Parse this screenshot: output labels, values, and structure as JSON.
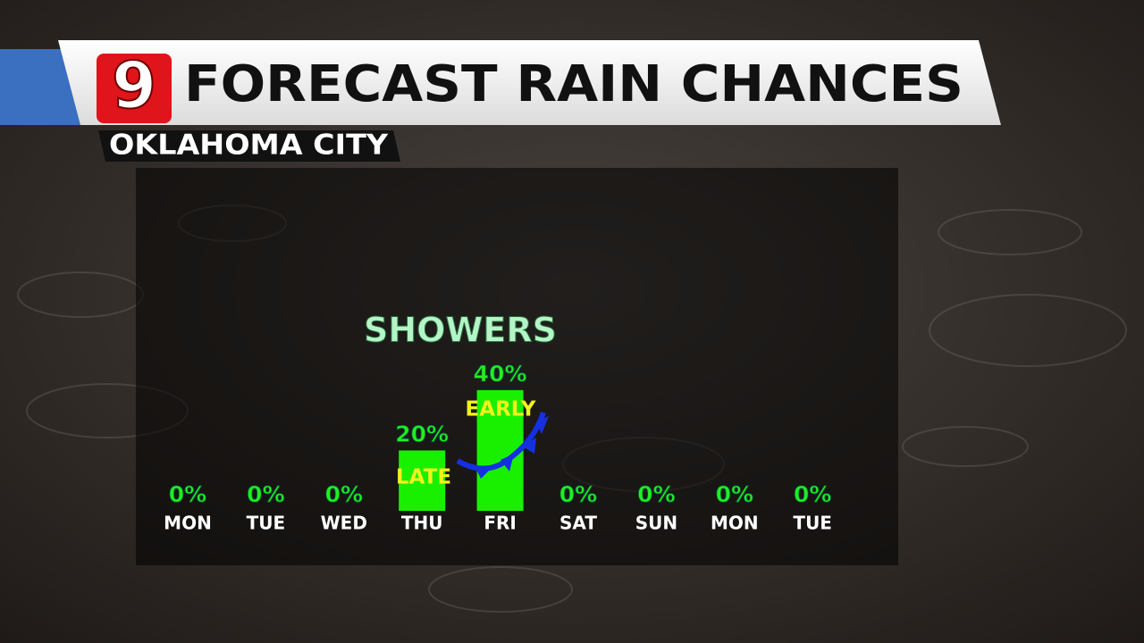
{
  "logo": "9",
  "chart_data": {
    "type": "bar",
    "title": "FORECAST RAIN CHANCES",
    "subtitle": "OKLAHOMA CITY",
    "annotations": [
      "SHOWERS",
      "LATE",
      "EARLY"
    ],
    "categories": [
      "MON",
      "TUE",
      "WED",
      "THU",
      "FRI",
      "SAT",
      "SUN",
      "MON",
      "TUE"
    ],
    "values": [
      0,
      0,
      0,
      20,
      40,
      0,
      0,
      0,
      0
    ],
    "value_labels": [
      "0%",
      "0%",
      "0%",
      "20%",
      "40%",
      "0%",
      "0%",
      "0%",
      "0%"
    ],
    "color": "#19f000"
  }
}
